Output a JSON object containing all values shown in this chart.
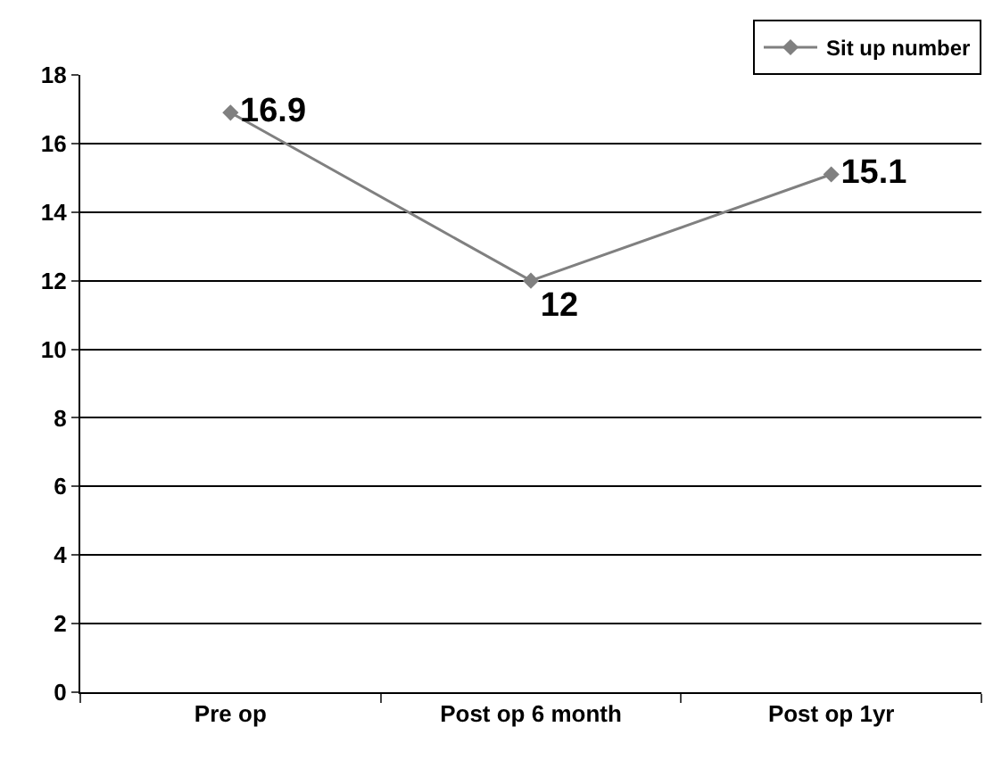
{
  "chart_data": {
    "type": "line",
    "categories": [
      "Pre op",
      "Post op 6 month",
      "Post op 1yr"
    ],
    "series": [
      {
        "name": "Sit up number",
        "color": "#808080",
        "values": [
          16.9,
          12,
          15.1
        ]
      }
    ],
    "ylim": [
      0,
      18
    ],
    "yticks": [
      0,
      2,
      4,
      6,
      8,
      10,
      12,
      14,
      16,
      18
    ],
    "grid": "y",
    "legend": "top right",
    "marker": "diamond",
    "line_style": "solid",
    "data_labels": true
  }
}
